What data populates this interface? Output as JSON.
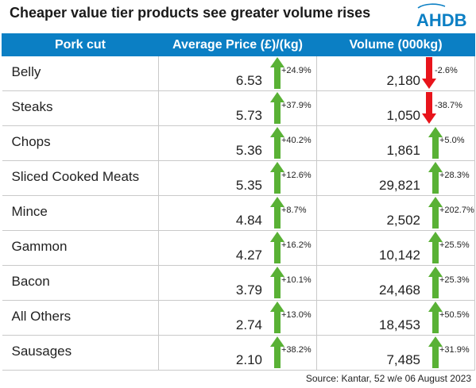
{
  "title": "Cheaper value tier products see greater volume rises",
  "logo_text": "AHDB",
  "source": "Source: Kantar, 52 w/e 06 August 2023",
  "colors": {
    "header_bg": "#0b7fc4",
    "up_arrow": "#59b135",
    "down_arrow": "#e8141b",
    "logo": "#0b7fc4"
  },
  "chart_data": {
    "type": "table",
    "columns": [
      "Pork cut",
      "Average Price (£)/(kg)",
      "Volume (000kg)"
    ],
    "rows": [
      {
        "cut": "Belly",
        "price": "6.53",
        "price_change": "+24.9%",
        "price_dir": "up",
        "volume": "2,180",
        "volume_change": "-2.6%",
        "volume_dir": "down"
      },
      {
        "cut": "Steaks",
        "price": "5.73",
        "price_change": "+37.9%",
        "price_dir": "up",
        "volume": "1,050",
        "volume_change": "-38.7%",
        "volume_dir": "down"
      },
      {
        "cut": "Chops",
        "price": "5.36",
        "price_change": "+40.2%",
        "price_dir": "up",
        "volume": "1,861",
        "volume_change": "+5.0%",
        "volume_dir": "up"
      },
      {
        "cut": "Sliced Cooked Meats",
        "price": "5.35",
        "price_change": "+12.6%",
        "price_dir": "up",
        "volume": "29,821",
        "volume_change": "+28.3%",
        "volume_dir": "up"
      },
      {
        "cut": "Mince",
        "price": "4.84",
        "price_change": "+8.7%",
        "price_dir": "up",
        "volume": "2,502",
        "volume_change": "+202.7%",
        "volume_dir": "up"
      },
      {
        "cut": "Gammon",
        "price": "4.27",
        "price_change": "+16.2%",
        "price_dir": "up",
        "volume": "10,142",
        "volume_change": "+25.5%",
        "volume_dir": "up"
      },
      {
        "cut": "Bacon",
        "price": "3.79",
        "price_change": "+10.1%",
        "price_dir": "up",
        "volume": "24,468",
        "volume_change": "+25.3%",
        "volume_dir": "up"
      },
      {
        "cut": "All Others",
        "price": "2.74",
        "price_change": "+13.0%",
        "price_dir": "up",
        "volume": "18,453",
        "volume_change": "+50.5%",
        "volume_dir": "up"
      },
      {
        "cut": "Sausages",
        "price": "2.10",
        "price_change": "+38.2%",
        "price_dir": "up",
        "volume": "7,485",
        "volume_change": "+31.9%",
        "volume_dir": "up"
      }
    ]
  }
}
